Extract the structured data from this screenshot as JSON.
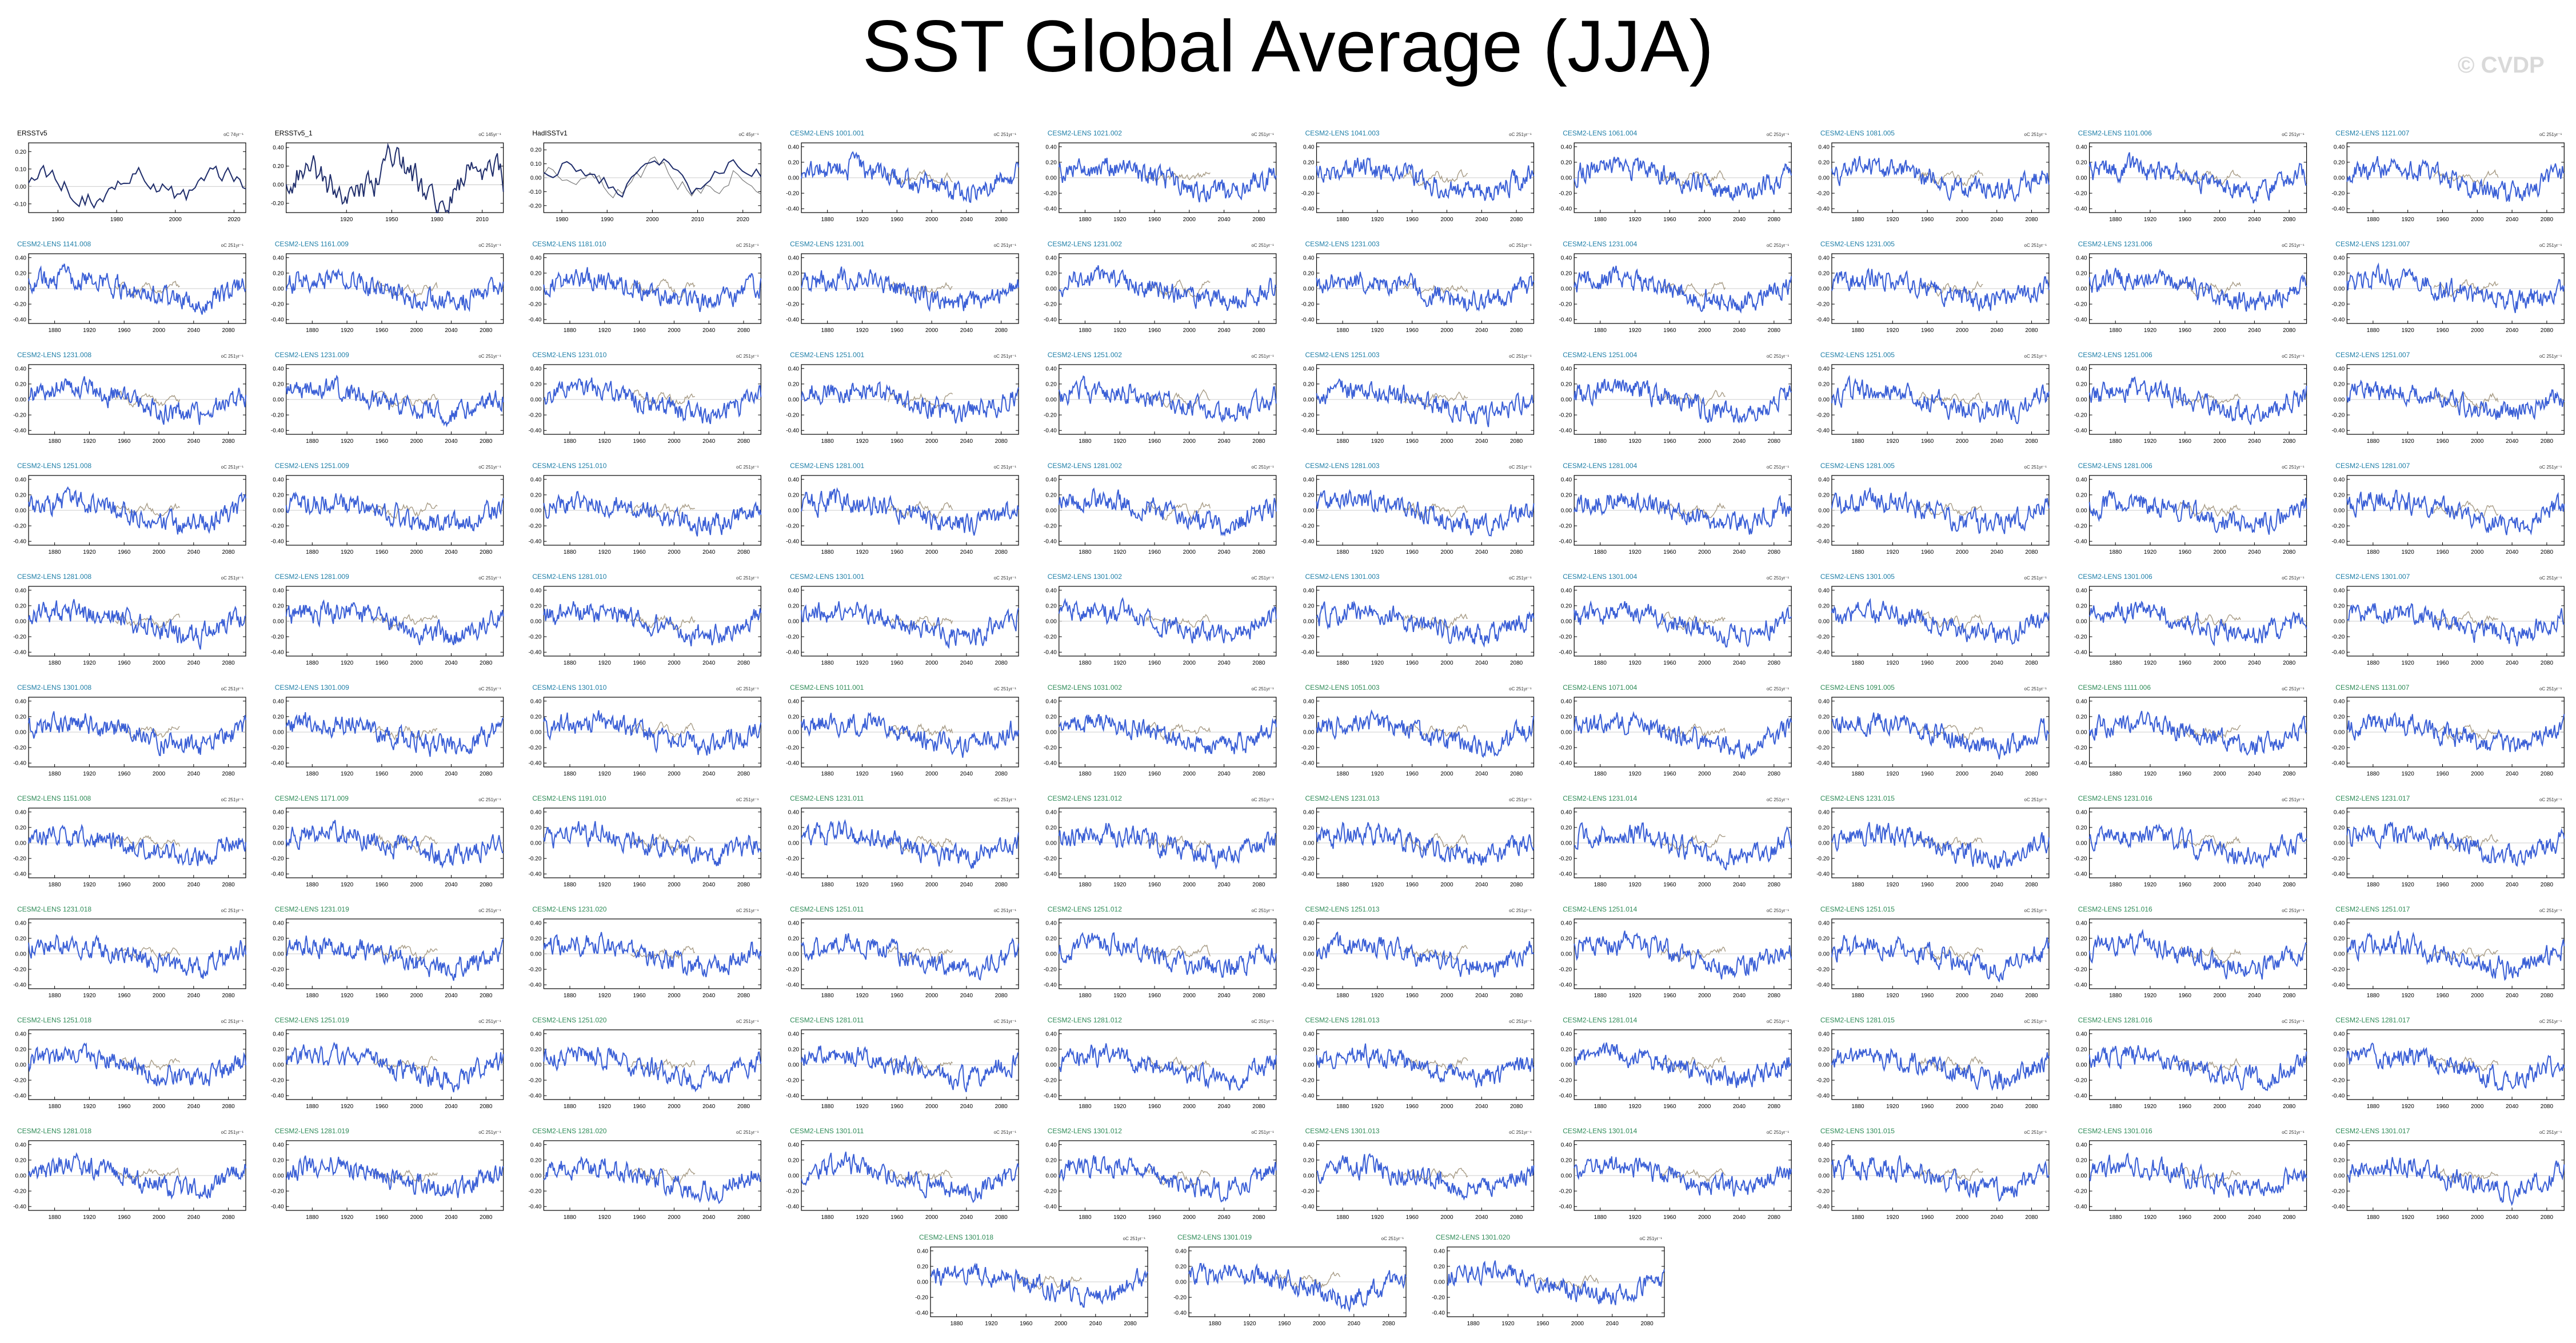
{
  "title": "SST Global Average (JJA)",
  "watermark": "© CVDP",
  "colors": {
    "model_line": "#3a5fd6",
    "obs_line": "#1f2d6b",
    "obs_ref_line": "#7a7a7a",
    "trend_ref": "#a89c86",
    "model_label": "#1f7fa8",
    "model_label_alt": "#2e8b57",
    "obs_label": "#000000"
  },
  "chart_data": [
    {
      "type": "line",
      "label": "ERSSTv5",
      "units": "oC 74yr⁻¹",
      "kind": "obs",
      "y_ticks": [
        "0.20",
        "0.10",
        "0.00",
        "-0.10"
      ],
      "x_ticks": [
        "1960",
        "1980",
        "2000",
        "2020"
      ],
      "xlim": [
        1950,
        2024
      ],
      "ylim": [
        -0.15,
        0.25
      ]
    },
    {
      "type": "line",
      "label": "ERSSTv5_1",
      "units": "oC 145yr⁻¹",
      "kind": "obs",
      "y_ticks": [
        "0.40",
        "0.20",
        "0.00",
        "-0.20"
      ],
      "x_ticks": [
        "1920",
        "1950",
        "1980",
        "2010"
      ],
      "xlim": [
        1880,
        2024
      ],
      "ylim": [
        -0.3,
        0.45
      ]
    },
    {
      "type": "line",
      "label": "HadISSTv1",
      "units": "oC 45yr⁻¹",
      "kind": "obs",
      "y_ticks": [
        "0.20",
        "0.10",
        "0.00",
        "-0.10",
        "-0.20"
      ],
      "x_ticks": [
        "1980",
        "1990",
        "2000",
        "2010",
        "2020"
      ],
      "xlim": [
        1976,
        2024
      ],
      "ylim": [
        -0.25,
        0.25
      ]
    },
    {
      "type": "line",
      "label": "CESM2-LENS 1001.001",
      "units": "oC 251yr⁻¹",
      "kind": "model",
      "color": "model_label"
    },
    {
      "type": "line",
      "label": "CESM2-LENS 1021.002",
      "units": "oC 251yr⁻¹",
      "kind": "model",
      "color": "model_label"
    },
    {
      "type": "line",
      "label": "CESM2-LENS 1041.003",
      "units": "oC 251yr⁻¹",
      "kind": "model",
      "color": "model_label"
    },
    {
      "type": "line",
      "label": "CESM2-LENS 1061.004",
      "units": "oC 251yr⁻¹",
      "kind": "model",
      "color": "model_label"
    },
    {
      "type": "line",
      "label": "CESM2-LENS 1081.005",
      "units": "oC 251yr⁻¹",
      "kind": "model",
      "color": "model_label"
    },
    {
      "type": "line",
      "label": "CESM2-LENS 1101.006",
      "units": "oC 251yr⁻¹",
      "kind": "model",
      "color": "model_label"
    },
    {
      "type": "line",
      "label": "CESM2-LENS 1121.007",
      "units": "oC 251yr⁻¹",
      "kind": "model",
      "color": "model_label"
    },
    {
      "type": "line",
      "label": "CESM2-LENS 1141.008",
      "units": "oC 251yr⁻¹",
      "kind": "model",
      "color": "model_label"
    },
    {
      "type": "line",
      "label": "CESM2-LENS 1161.009",
      "units": "oC 251yr⁻¹",
      "kind": "model",
      "color": "model_label"
    },
    {
      "type": "line",
      "label": "CESM2-LENS 1181.010",
      "units": "oC 251yr⁻¹",
      "kind": "model",
      "color": "model_label"
    },
    {
      "type": "line",
      "label": "CESM2-LENS 1231.001",
      "units": "oC 251yr⁻¹",
      "kind": "model",
      "color": "model_label"
    },
    {
      "type": "line",
      "label": "CESM2-LENS 1231.002",
      "units": "oC 251yr⁻¹",
      "kind": "model",
      "color": "model_label"
    },
    {
      "type": "line",
      "label": "CESM2-LENS 1231.003",
      "units": "oC 251yr⁻¹",
      "kind": "model",
      "color": "model_label"
    },
    {
      "type": "line",
      "label": "CESM2-LENS 1231.004",
      "units": "oC 251yr⁻¹",
      "kind": "model",
      "color": "model_label"
    },
    {
      "type": "line",
      "label": "CESM2-LENS 1231.005",
      "units": "oC 251yr⁻¹",
      "kind": "model",
      "color": "model_label"
    },
    {
      "type": "line",
      "label": "CESM2-LENS 1231.006",
      "units": "oC 251yr⁻¹",
      "kind": "model",
      "color": "model_label"
    },
    {
      "type": "line",
      "label": "CESM2-LENS 1231.007",
      "units": "oC 251yr⁻¹",
      "kind": "model",
      "color": "model_label"
    },
    {
      "type": "line",
      "label": "CESM2-LENS 1231.008",
      "units": "oC 251yr⁻¹",
      "kind": "model",
      "color": "model_label"
    },
    {
      "type": "line",
      "label": "CESM2-LENS 1231.009",
      "units": "oC 251yr⁻¹",
      "kind": "model",
      "color": "model_label"
    },
    {
      "type": "line",
      "label": "CESM2-LENS 1231.010",
      "units": "oC 251yr⁻¹",
      "kind": "model",
      "color": "model_label"
    },
    {
      "type": "line",
      "label": "CESM2-LENS 1251.001",
      "units": "oC 251yr⁻¹",
      "kind": "model",
      "color": "model_label"
    },
    {
      "type": "line",
      "label": "CESM2-LENS 1251.002",
      "units": "oC 251yr⁻¹",
      "kind": "model",
      "color": "model_label"
    },
    {
      "type": "line",
      "label": "CESM2-LENS 1251.003",
      "units": "oC 251yr⁻¹",
      "kind": "model",
      "color": "model_label"
    },
    {
      "type": "line",
      "label": "CESM2-LENS 1251.004",
      "units": "oC 251yr⁻¹",
      "kind": "model",
      "color": "model_label"
    },
    {
      "type": "line",
      "label": "CESM2-LENS 1251.005",
      "units": "oC 251yr⁻¹",
      "kind": "model",
      "color": "model_label"
    },
    {
      "type": "line",
      "label": "CESM2-LENS 1251.006",
      "units": "oC 251yr⁻¹",
      "kind": "model",
      "color": "model_label"
    },
    {
      "type": "line",
      "label": "CESM2-LENS 1251.007",
      "units": "oC 251yr⁻¹",
      "kind": "model",
      "color": "model_label"
    },
    {
      "type": "line",
      "label": "CESM2-LENS 1251.008",
      "units": "oC 251yr⁻¹",
      "kind": "model",
      "color": "model_label"
    },
    {
      "type": "line",
      "label": "CESM2-LENS 1251.009",
      "units": "oC 251yr⁻¹",
      "kind": "model",
      "color": "model_label"
    },
    {
      "type": "line",
      "label": "CESM2-LENS 1251.010",
      "units": "oC 251yr⁻¹",
      "kind": "model",
      "color": "model_label"
    },
    {
      "type": "line",
      "label": "CESM2-LENS 1281.001",
      "units": "oC 251yr⁻¹",
      "kind": "model",
      "color": "model_label"
    },
    {
      "type": "line",
      "label": "CESM2-LENS 1281.002",
      "units": "oC 251yr⁻¹",
      "kind": "model",
      "color": "model_label"
    },
    {
      "type": "line",
      "label": "CESM2-LENS 1281.003",
      "units": "oC 251yr⁻¹",
      "kind": "model",
      "color": "model_label"
    },
    {
      "type": "line",
      "label": "CESM2-LENS 1281.004",
      "units": "oC 251yr⁻¹",
      "kind": "model",
      "color": "model_label"
    },
    {
      "type": "line",
      "label": "CESM2-LENS 1281.005",
      "units": "oC 251yr⁻¹",
      "kind": "model",
      "color": "model_label"
    },
    {
      "type": "line",
      "label": "CESM2-LENS 1281.006",
      "units": "oC 251yr⁻¹",
      "kind": "model",
      "color": "model_label"
    },
    {
      "type": "line",
      "label": "CESM2-LENS 1281.007",
      "units": "oC 251yr⁻¹",
      "kind": "model",
      "color": "model_label"
    },
    {
      "type": "line",
      "label": "CESM2-LENS 1281.008",
      "units": "oC 251yr⁻¹",
      "kind": "model",
      "color": "model_label"
    },
    {
      "type": "line",
      "label": "CESM2-LENS 1281.009",
      "units": "oC 251yr⁻¹",
      "kind": "model",
      "color": "model_label"
    },
    {
      "type": "line",
      "label": "CESM2-LENS 1281.010",
      "units": "oC 251yr⁻¹",
      "kind": "model",
      "color": "model_label"
    },
    {
      "type": "line",
      "label": "CESM2-LENS 1301.001",
      "units": "oC 251yr⁻¹",
      "kind": "model",
      "color": "model_label"
    },
    {
      "type": "line",
      "label": "CESM2-LENS 1301.002",
      "units": "oC 251yr⁻¹",
      "kind": "model",
      "color": "model_label"
    },
    {
      "type": "line",
      "label": "CESM2-LENS 1301.003",
      "units": "oC 251yr⁻¹",
      "kind": "model",
      "color": "model_label"
    },
    {
      "type": "line",
      "label": "CESM2-LENS 1301.004",
      "units": "oC 251yr⁻¹",
      "kind": "model",
      "color": "model_label"
    },
    {
      "type": "line",
      "label": "CESM2-LENS 1301.005",
      "units": "oC 251yr⁻¹",
      "kind": "model",
      "color": "model_label"
    },
    {
      "type": "line",
      "label": "CESM2-LENS 1301.006",
      "units": "oC 251yr⁻¹",
      "kind": "model",
      "color": "model_label"
    },
    {
      "type": "line",
      "label": "CESM2-LENS 1301.007",
      "units": "oC 251yr⁻¹",
      "kind": "model",
      "color": "model_label"
    },
    {
      "type": "line",
      "label": "CESM2-LENS 1301.008",
      "units": "oC 251yr⁻¹",
      "kind": "model",
      "color": "model_label"
    },
    {
      "type": "line",
      "label": "CESM2-LENS 1301.009",
      "units": "oC 251yr⁻¹",
      "kind": "model",
      "color": "model_label"
    },
    {
      "type": "line",
      "label": "CESM2-LENS 1301.010",
      "units": "oC 251yr⁻¹",
      "kind": "model",
      "color": "model_label"
    },
    {
      "type": "line",
      "label": "CESM2-LENS 1011.001",
      "units": "oC 251yr⁻¹",
      "kind": "model",
      "color": "model_label_alt"
    },
    {
      "type": "line",
      "label": "CESM2-LENS 1031.002",
      "units": "oC 251yr⁻¹",
      "kind": "model",
      "color": "model_label_alt"
    },
    {
      "type": "line",
      "label": "CESM2-LENS 1051.003",
      "units": "oC 251yr⁻¹",
      "kind": "model",
      "color": "model_label_alt"
    },
    {
      "type": "line",
      "label": "CESM2-LENS 1071.004",
      "units": "oC 251yr⁻¹",
      "kind": "model",
      "color": "model_label_alt"
    },
    {
      "type": "line",
      "label": "CESM2-LENS 1091.005",
      "units": "oC 251yr⁻¹",
      "kind": "model",
      "color": "model_label_alt"
    },
    {
      "type": "line",
      "label": "CESM2-LENS 1111.006",
      "units": "oC 251yr⁻¹",
      "kind": "model",
      "color": "model_label_alt"
    },
    {
      "type": "line",
      "label": "CESM2-LENS 1131.007",
      "units": "oC 251yr⁻¹",
      "kind": "model",
      "color": "model_label_alt"
    },
    {
      "type": "line",
      "label": "CESM2-LENS 1151.008",
      "units": "oC 251yr⁻¹",
      "kind": "model",
      "color": "model_label_alt"
    },
    {
      "type": "line",
      "label": "CESM2-LENS 1171.009",
      "units": "oC 251yr⁻¹",
      "kind": "model",
      "color": "model_label_alt"
    },
    {
      "type": "line",
      "label": "CESM2-LENS 1191.010",
      "units": "oC 251yr⁻¹",
      "kind": "model",
      "color": "model_label_alt"
    },
    {
      "type": "line",
      "label": "CESM2-LENS 1231.011",
      "units": "oC 251yr⁻¹",
      "kind": "model",
      "color": "model_label_alt"
    },
    {
      "type": "line",
      "label": "CESM2-LENS 1231.012",
      "units": "oC 251yr⁻¹",
      "kind": "model",
      "color": "model_label_alt"
    },
    {
      "type": "line",
      "label": "CESM2-LENS 1231.013",
      "units": "oC 251yr⁻¹",
      "kind": "model",
      "color": "model_label_alt"
    },
    {
      "type": "line",
      "label": "CESM2-LENS 1231.014",
      "units": "oC 251yr⁻¹",
      "kind": "model",
      "color": "model_label_alt"
    },
    {
      "type": "line",
      "label": "CESM2-LENS 1231.015",
      "units": "oC 251yr⁻¹",
      "kind": "model",
      "color": "model_label_alt"
    },
    {
      "type": "line",
      "label": "CESM2-LENS 1231.016",
      "units": "oC 251yr⁻¹",
      "kind": "model",
      "color": "model_label_alt"
    },
    {
      "type": "line",
      "label": "CESM2-LENS 1231.017",
      "units": "oC 251yr⁻¹",
      "kind": "model",
      "color": "model_label_alt"
    },
    {
      "type": "line",
      "label": "CESM2-LENS 1231.018",
      "units": "oC 251yr⁻¹",
      "kind": "model",
      "color": "model_label_alt"
    },
    {
      "type": "line",
      "label": "CESM2-LENS 1231.019",
      "units": "oC 251yr⁻¹",
      "kind": "model",
      "color": "model_label_alt"
    },
    {
      "type": "line",
      "label": "CESM2-LENS 1231.020",
      "units": "oC 251yr⁻¹",
      "kind": "model",
      "color": "model_label_alt"
    },
    {
      "type": "line",
      "label": "CESM2-LENS 1251.011",
      "units": "oC 251yr⁻¹",
      "kind": "model",
      "color": "model_label_alt"
    },
    {
      "type": "line",
      "label": "CESM2-LENS 1251.012",
      "units": "oC 251yr⁻¹",
      "kind": "model",
      "color": "model_label_alt"
    },
    {
      "type": "line",
      "label": "CESM2-LENS 1251.013",
      "units": "oC 251yr⁻¹",
      "kind": "model",
      "color": "model_label_alt"
    },
    {
      "type": "line",
      "label": "CESM2-LENS 1251.014",
      "units": "oC 251yr⁻¹",
      "kind": "model",
      "color": "model_label_alt"
    },
    {
      "type": "line",
      "label": "CESM2-LENS 1251.015",
      "units": "oC 251yr⁻¹",
      "kind": "model",
      "color": "model_label_alt"
    },
    {
      "type": "line",
      "label": "CESM2-LENS 1251.016",
      "units": "oC 251yr⁻¹",
      "kind": "model",
      "color": "model_label_alt"
    },
    {
      "type": "line",
      "label": "CESM2-LENS 1251.017",
      "units": "oC 251yr⁻¹",
      "kind": "model",
      "color": "model_label_alt"
    },
    {
      "type": "line",
      "label": "CESM2-LENS 1251.018",
      "units": "oC 251yr⁻¹",
      "kind": "model",
      "color": "model_label_alt"
    },
    {
      "type": "line",
      "label": "CESM2-LENS 1251.019",
      "units": "oC 251yr⁻¹",
      "kind": "model",
      "color": "model_label_alt"
    },
    {
      "type": "line",
      "label": "CESM2-LENS 1251.020",
      "units": "oC 251yr⁻¹",
      "kind": "model",
      "color": "model_label_alt"
    },
    {
      "type": "line",
      "label": "CESM2-LENS 1281.011",
      "units": "oC 251yr⁻¹",
      "kind": "model",
      "color": "model_label_alt"
    },
    {
      "type": "line",
      "label": "CESM2-LENS 1281.012",
      "units": "oC 251yr⁻¹",
      "kind": "model",
      "color": "model_label_alt"
    },
    {
      "type": "line",
      "label": "CESM2-LENS 1281.013",
      "units": "oC 251yr⁻¹",
      "kind": "model",
      "color": "model_label_alt"
    },
    {
      "type": "line",
      "label": "CESM2-LENS 1281.014",
      "units": "oC 251yr⁻¹",
      "kind": "model",
      "color": "model_label_alt"
    },
    {
      "type": "line",
      "label": "CESM2-LENS 1281.015",
      "units": "oC 251yr⁻¹",
      "kind": "model",
      "color": "model_label_alt"
    },
    {
      "type": "line",
      "label": "CESM2-LENS 1281.016",
      "units": "oC 251yr⁻¹",
      "kind": "model",
      "color": "model_label_alt"
    },
    {
      "type": "line",
      "label": "CESM2-LENS 1281.017",
      "units": "oC 251yr⁻¹",
      "kind": "model",
      "color": "model_label_alt"
    },
    {
      "type": "line",
      "label": "CESM2-LENS 1281.018",
      "units": "oC 251yr⁻¹",
      "kind": "model",
      "color": "model_label_alt"
    },
    {
      "type": "line",
      "label": "CESM2-LENS 1281.019",
      "units": "oC 251yr⁻¹",
      "kind": "model",
      "color": "model_label_alt"
    },
    {
      "type": "line",
      "label": "CESM2-LENS 1281.020",
      "units": "oC 251yr⁻¹",
      "kind": "model",
      "color": "model_label_alt"
    },
    {
      "type": "line",
      "label": "CESM2-LENS 1301.011",
      "units": "oC 251yr⁻¹",
      "kind": "model",
      "color": "model_label_alt"
    },
    {
      "type": "line",
      "label": "CESM2-LENS 1301.012",
      "units": "oC 251yr⁻¹",
      "kind": "model",
      "color": "model_label_alt"
    },
    {
      "type": "line",
      "label": "CESM2-LENS 1301.013",
      "units": "oC 251yr⁻¹",
      "kind": "model",
      "color": "model_label_alt"
    },
    {
      "type": "line",
      "label": "CESM2-LENS 1301.014",
      "units": "oC 251yr⁻¹",
      "kind": "model",
      "color": "model_label_alt"
    },
    {
      "type": "line",
      "label": "CESM2-LENS 1301.015",
      "units": "oC 251yr⁻¹",
      "kind": "model",
      "color": "model_label_alt"
    },
    {
      "type": "line",
      "label": "CESM2-LENS 1301.016",
      "units": "oC 251yr⁻¹",
      "kind": "model",
      "color": "model_label_alt"
    },
    {
      "type": "line",
      "label": "CESM2-LENS 1301.017",
      "units": "oC 251yr⁻¹",
      "kind": "model",
      "color": "model_label_alt"
    },
    {
      "type": "line",
      "label": "CESM2-LENS 1301.018",
      "units": "oC 251yr⁻¹",
      "kind": "model",
      "color": "model_label_alt"
    },
    {
      "type": "line",
      "label": "CESM2-LENS 1301.019",
      "units": "oC 251yr⁻¹",
      "kind": "model",
      "color": "model_label_alt"
    },
    {
      "type": "line",
      "label": "CESM2-LENS 1301.020",
      "units": "oC 251yr⁻¹",
      "kind": "model",
      "color": "model_label_alt"
    }
  ],
  "model_axes": {
    "y_ticks": [
      "0.40",
      "0.20",
      "0.00",
      "-0.20",
      "-0.40"
    ],
    "x_ticks": [
      "1880",
      "1920",
      "1960",
      "2000",
      "2040",
      "2080"
    ],
    "xlim": [
      1850,
      2100
    ],
    "ylim": [
      -0.45,
      0.45
    ]
  }
}
